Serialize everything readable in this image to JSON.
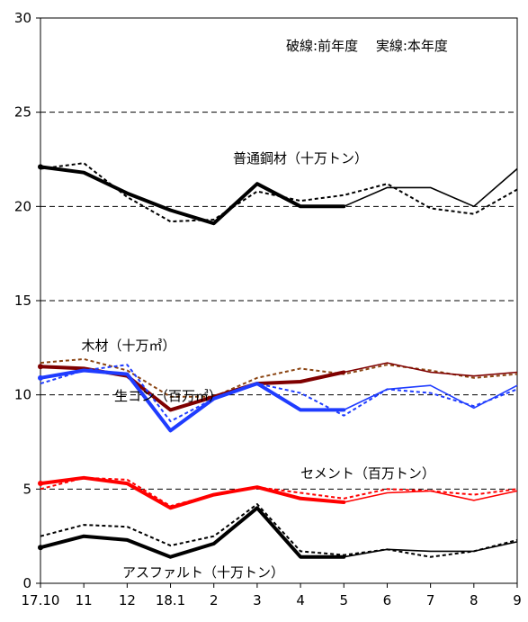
{
  "chart_data": {
    "type": "line",
    "legend_note": "破線:前年度　 実線:本年度",
    "x": [
      "17.10",
      "11",
      "12",
      "18.1",
      "2",
      "3",
      "4",
      "5",
      "6",
      "7",
      "8",
      "9"
    ],
    "ylim": [
      0,
      30
    ],
    "yticks": [
      "0",
      "5",
      "10",
      "15",
      "20",
      "25",
      "30"
    ],
    "grid": "horizontal dashed at 5, 10, 15, 20, 25",
    "series": [
      {
        "name": "普通鋼材（十万トン）",
        "key": "steel",
        "color": "#000000",
        "current": [
          22.1,
          21.8,
          20.7,
          19.8,
          19.1,
          21.2,
          20.0,
          20.0,
          21.0,
          21.0,
          20.0,
          22.0
        ],
        "previous": [
          22.0,
          22.3,
          20.5,
          19.2,
          19.3,
          20.8,
          20.3,
          20.6,
          21.2,
          19.9,
          19.6,
          20.9
        ]
      },
      {
        "name": "木材（十万㎥）",
        "key": "wood",
        "color": "#7f0000",
        "prev_color": "#8b4513",
        "current": [
          11.5,
          11.4,
          11.0,
          9.2,
          9.9,
          10.6,
          10.7,
          11.2,
          11.7,
          11.2,
          11.0,
          11.2
        ],
        "previous": [
          11.7,
          11.9,
          11.3,
          9.9,
          9.9,
          10.9,
          11.4,
          11.1,
          11.6,
          11.3,
          10.9,
          11.1
        ]
      },
      {
        "name": "生コン（百万㎥）",
        "key": "concrete",
        "color": "#1f3cff",
        "current": [
          10.9,
          11.3,
          11.1,
          8.1,
          9.8,
          10.6,
          9.2,
          9.2,
          10.3,
          10.5,
          9.3,
          10.5
        ],
        "previous": [
          10.6,
          11.3,
          11.6,
          8.6,
          9.8,
          10.6,
          10.1,
          8.9,
          10.3,
          10.1,
          9.4,
          10.3
        ]
      },
      {
        "name": "セメント（百万トン）",
        "key": "cement",
        "color": "#ff0000",
        "current": [
          5.3,
          5.6,
          5.3,
          4.0,
          4.7,
          5.1,
          4.5,
          4.3,
          4.8,
          4.9,
          4.4,
          4.9
        ],
        "previous": [
          5.0,
          5.6,
          5.5,
          4.1,
          4.7,
          5.1,
          4.8,
          4.5,
          5.0,
          4.9,
          4.7,
          5.0
        ]
      },
      {
        "name": "アスファルト（十万トン）",
        "key": "asphalt",
        "color": "#000000",
        "current": [
          1.9,
          2.5,
          2.3,
          1.4,
          2.1,
          4.0,
          1.4,
          1.4,
          1.8,
          1.7,
          1.7,
          2.2
        ],
        "previous": [
          2.5,
          3.1,
          3.0,
          2.0,
          2.5,
          4.2,
          1.7,
          1.5,
          1.8,
          1.4,
          1.7,
          2.3
        ]
      }
    ],
    "bold_months": 8
  }
}
